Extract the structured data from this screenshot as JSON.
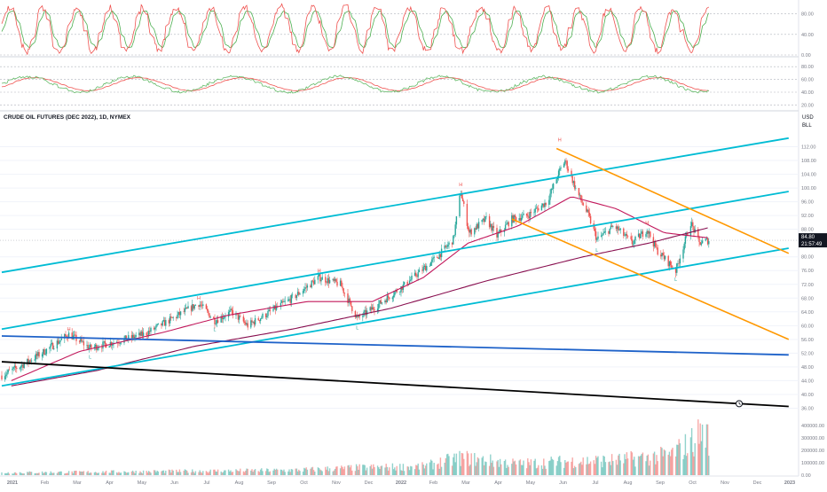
{
  "header": {
    "title": "CRUDE OIL FUTURES (DEC 2022), 1D, NYMEX",
    "currency": "USD",
    "unit": "BLL"
  },
  "price_tags": {
    "last": "84.80",
    "countdown": "21:57:49"
  },
  "colors": {
    "candle_up": "#26a69a",
    "candle_down": "#ef5350",
    "channel_cyan": "#00bcd4",
    "channel_orange": "#ff9800",
    "trend_blue": "#1e62c9",
    "trend_black": "#000000",
    "ma_fast": "#c2185b",
    "ma_slow": "#880e4f",
    "osc_main": "#66bb6a",
    "osc_signal": "#ef5350"
  },
  "stoch_panel": {
    "levels": [
      "80.00",
      "40.00",
      "0.00"
    ],
    "fast": [],
    "slow": []
  },
  "rsi_panel": {
    "levels": [
      "80.00",
      "60.00",
      "40.00",
      "20.00"
    ],
    "rsi": [],
    "ma": []
  },
  "chart_data": {
    "type": "candlestick",
    "title": "CRUDE OIL FUTURES (DEC 2022), 1D, NYMEX",
    "ylabel": "USD BLL",
    "ylim": [
      32.0,
      116.0
    ],
    "y_ticks": [
      "112.00",
      "108.00",
      "104.00",
      "100.00",
      "96.00",
      "92.00",
      "88.00",
      "80.00",
      "76.00",
      "72.00",
      "68.00",
      "64.00",
      "60.00",
      "56.00",
      "52.00",
      "48.00",
      "44.00",
      "40.00",
      "36.00"
    ],
    "x_ticks": [
      "2021",
      "Feb",
      "Mar",
      "Apr",
      "May",
      "Jun",
      "Jul",
      "Aug",
      "Sep",
      "Oct",
      "Nov",
      "Dec",
      "2022",
      "Feb",
      "Mar",
      "Apr",
      "May",
      "Jun",
      "Jul",
      "Aug",
      "Sep",
      "Oct",
      "Nov",
      "Dec",
      "2023"
    ],
    "xlim": [
      "2021-01-01",
      "2023-01-01"
    ],
    "anchors": [
      [
        "2021-01-01",
        45.5
      ],
      [
        "2021-01-20",
        48.5
      ],
      [
        "2021-02-10",
        52.5
      ],
      [
        "2021-03-05",
        57.5
      ],
      [
        "2021-03-25",
        53.5
      ],
      [
        "2021-04-20",
        55.5
      ],
      [
        "2021-05-15",
        57.5
      ],
      [
        "2021-06-10",
        62.0
      ],
      [
        "2021-07-05",
        66.5
      ],
      [
        "2021-07-20",
        61.5
      ],
      [
        "2021-08-05",
        64.0
      ],
      [
        "2021-08-20",
        60.0
      ],
      [
        "2021-09-15",
        65.0
      ],
      [
        "2021-10-01",
        68.0
      ],
      [
        "2021-10-26",
        74.0
      ],
      [
        "2021-11-15",
        72.0
      ],
      [
        "2021-12-01",
        62.0
      ],
      [
        "2021-12-20",
        66.0
      ],
      [
        "2022-01-15",
        72.0
      ],
      [
        "2022-02-14",
        80.0
      ],
      [
        "2022-03-01",
        85.0
      ],
      [
        "2022-03-08",
        99.0
      ],
      [
        "2022-03-16",
        87.0
      ],
      [
        "2022-04-01",
        91.0
      ],
      [
        "2022-04-11",
        86.0
      ],
      [
        "2022-04-25",
        91.0
      ],
      [
        "2022-05-10",
        92.0
      ],
      [
        "2022-05-28",
        96.0
      ],
      [
        "2022-06-09",
        105.0
      ],
      [
        "2022-06-14",
        108.0
      ],
      [
        "2022-06-25",
        99.0
      ],
      [
        "2022-07-06",
        92.0
      ],
      [
        "2022-07-14",
        85.0
      ],
      [
        "2022-07-30",
        89.0
      ],
      [
        "2022-08-16",
        84.0
      ],
      [
        "2022-08-30",
        88.0
      ],
      [
        "2022-09-08",
        82.0
      ],
      [
        "2022-09-26",
        76.0
      ],
      [
        "2022-10-10",
        90.0
      ],
      [
        "2022-10-18",
        84.0
      ],
      [
        "2022-10-27",
        84.8
      ]
    ],
    "ma_fast_anchors": [
      [
        "2021-01-10",
        44.0
      ],
      [
        "2021-03-15",
        52.5
      ],
      [
        "2021-06-01",
        58.0
      ],
      [
        "2021-08-01",
        63.0
      ],
      [
        "2021-10-15",
        67.0
      ],
      [
        "2021-12-15",
        67.0
      ],
      [
        "2022-02-01",
        74.0
      ],
      [
        "2022-03-15",
        84.0
      ],
      [
        "2022-05-01",
        89.0
      ],
      [
        "2022-06-20",
        97.5
      ],
      [
        "2022-08-01",
        94.0
      ],
      [
        "2022-09-15",
        87.0
      ],
      [
        "2022-10-27",
        85.5
      ]
    ],
    "ma_slow_anchors": [
      [
        "2021-01-10",
        42.5
      ],
      [
        "2021-04-01",
        47.0
      ],
      [
        "2021-07-01",
        54.0
      ],
      [
        "2021-10-01",
        59.0
      ],
      [
        "2022-01-01",
        65.0
      ],
      [
        "2022-04-01",
        73.0
      ],
      [
        "2022-07-01",
        80.0
      ],
      [
        "2022-09-01",
        84.0
      ],
      [
        "2022-10-27",
        88.5
      ]
    ],
    "trend_lines": [
      {
        "color": "channel_cyan",
        "x1": "2021-01-01",
        "y1": 75.5,
        "x2": "2023-01-10",
        "y2": 114.5
      },
      {
        "color": "channel_cyan",
        "x1": "2021-01-01",
        "y1": 59.0,
        "x2": "2023-01-10",
        "y2": 99.0
      },
      {
        "color": "channel_cyan",
        "x1": "2021-01-01",
        "y1": 42.5,
        "x2": "2023-01-10",
        "y2": 82.5
      },
      {
        "color": "channel_orange",
        "x1": "2022-06-06",
        "y1": 111.5,
        "x2": "2023-01-10",
        "y2": 81.0
      },
      {
        "color": "channel_orange",
        "x1": "2022-04-25",
        "y1": 91.0,
        "x2": "2023-01-10",
        "y2": 56.0
      },
      {
        "color": "trend_blue",
        "x1": "2021-01-01",
        "y1": 57.0,
        "x2": "2023-01-10",
        "y2": 51.5
      },
      {
        "color": "trend_black",
        "x1": "2021-01-01",
        "y1": 49.5,
        "x2": "2023-01-10",
        "y2": 36.5
      }
    ],
    "swing_labels": [
      {
        "text": "H",
        "x": "2021-03-05",
        "y": 58.5,
        "pos": "above"
      },
      {
        "text": "L",
        "x": "2021-03-25",
        "y": 52.0,
        "pos": "below"
      },
      {
        "text": "H",
        "x": "2021-07-05",
        "y": 67.5,
        "pos": "above"
      },
      {
        "text": "L",
        "x": "2021-07-20",
        "y": 60.0,
        "pos": "below"
      },
      {
        "text": "H",
        "x": "2021-10-26",
        "y": 75.5,
        "pos": "above"
      },
      {
        "text": "L",
        "x": "2021-12-01",
        "y": 60.5,
        "pos": "below"
      },
      {
        "text": "H",
        "x": "2022-03-08",
        "y": 100.5,
        "pos": "above"
      },
      {
        "text": "H",
        "x": "2022-06-09",
        "y": 113.5,
        "pos": "above"
      },
      {
        "text": "L",
        "x": "2022-07-14",
        "y": 83.0,
        "pos": "below"
      },
      {
        "text": "H",
        "x": "2022-08-30",
        "y": 89.5,
        "pos": "above"
      },
      {
        "text": "L",
        "x": "2022-09-26",
        "y": 74.5,
        "pos": "below"
      }
    ],
    "volume": {
      "ylim": [
        0,
        400000
      ],
      "ticks": [
        "400000.00",
        "300000.00",
        "200000.00",
        "100000.00",
        "0.00"
      ],
      "anchors": [
        [
          "2021-01-01",
          20000
        ],
        [
          "2021-06-01",
          30000
        ],
        [
          "2021-10-01",
          40000
        ],
        [
          "2021-12-01",
          60000
        ],
        [
          "2022-02-01",
          70000
        ],
        [
          "2022-03-08",
          140000
        ],
        [
          "2022-05-01",
          90000
        ],
        [
          "2022-06-15",
          110000
        ],
        [
          "2022-08-01",
          120000
        ],
        [
          "2022-09-20",
          160000
        ],
        [
          "2022-10-10",
          260000
        ],
        [
          "2022-10-22",
          360000
        ],
        [
          "2022-10-27",
          300000
        ]
      ]
    }
  }
}
